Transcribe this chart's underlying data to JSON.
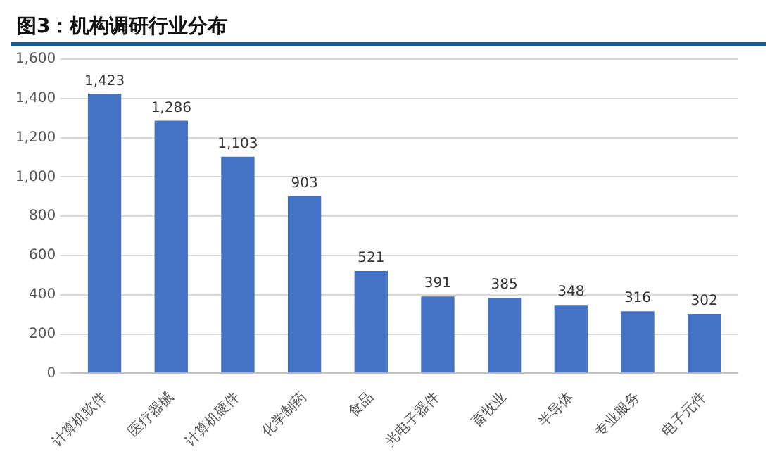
{
  "chart_data": {
    "type": "bar",
    "title": "图3：机构调研行业分布",
    "categories": [
      "计算机软件",
      "医疗器械",
      "计算机硬件",
      "化学制药",
      "食品",
      "光电子器件",
      "畜牧业",
      "半导体",
      "专业服务",
      "电子元件"
    ],
    "values": [
      1423,
      1286,
      1103,
      903,
      521,
      391,
      385,
      348,
      316,
      302
    ],
    "value_labels": [
      "1,423",
      "1,286",
      "1,103",
      "903",
      "521",
      "391",
      "385",
      "348",
      "316",
      "302"
    ],
    "color": "#4472c4",
    "ylim": [
      0,
      1600
    ],
    "yticks": [
      0,
      200,
      400,
      600,
      800,
      {
        "value": 1000,
        "label": "1,000"
      },
      {
        "value": 1200,
        "label": "1,200"
      },
      {
        "value": 1400,
        "label": "1,400"
      },
      {
        "value": 1600,
        "label": "1,600"
      }
    ],
    "grid": "y",
    "legend": false
  }
}
